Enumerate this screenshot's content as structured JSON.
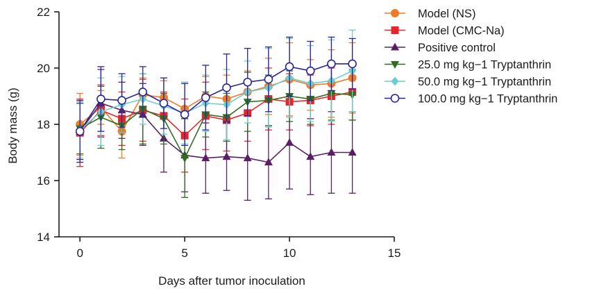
{
  "chart_data": {
    "type": "line",
    "xlabel": "Days after tumor inoculation",
    "ylabel": "Body mass (g)",
    "xlim": [
      -1,
      15
    ],
    "ylim": [
      14,
      22
    ],
    "xticks": [
      0,
      5,
      10,
      15
    ],
    "yticks": [
      14,
      16,
      18,
      20,
      22
    ],
    "x": [
      0,
      1,
      2,
      3,
      4,
      5,
      6,
      7,
      8,
      9,
      10,
      11,
      12,
      13
    ],
    "grid": false,
    "legend_position": "top-right",
    "series": [
      {
        "name": "Model (NS)",
        "color": "#f07a28",
        "marker": "circle-filled",
        "values": [
          18.0,
          18.6,
          17.75,
          19.05,
          18.95,
          18.55,
          19.0,
          18.9,
          19.15,
          19.35,
          19.6,
          19.4,
          19.45,
          19.65
        ],
        "errors": [
          1.1,
          0.6,
          0.95,
          0.6,
          0.6,
          0.95,
          0.7,
          0.85,
          0.75,
          1.0,
          1.3,
          0.9,
          1.2,
          1.25
        ]
      },
      {
        "name": "Model (CMC-Na)",
        "color": "#e8262a",
        "marker": "square-filled",
        "values": [
          17.7,
          18.5,
          18.2,
          18.5,
          18.3,
          17.6,
          18.3,
          18.15,
          18.4,
          18.9,
          18.8,
          18.85,
          19.0,
          19.15
        ],
        "errors": [
          1.2,
          0.9,
          0.95,
          1.1,
          0.85,
          1.3,
          1.2,
          1.1,
          1.0,
          1.1,
          1.0,
          0.9,
          1.0,
          1.0
        ]
      },
      {
        "name": "Positive control",
        "color": "#5b1e66",
        "marker": "triangle-up-filled",
        "values": [
          17.75,
          18.75,
          18.5,
          18.35,
          17.5,
          16.9,
          16.8,
          16.85,
          16.8,
          16.65,
          17.35,
          16.85,
          17.0,
          17.0
        ],
        "errors": [
          1.0,
          1.2,
          1.0,
          1.1,
          1.2,
          1.3,
          1.25,
          1.2,
          1.5,
          1.3,
          1.65,
          1.35,
          1.45,
          1.45
        ]
      },
      {
        "name": "25.0 mg kg−1 Tryptanthrin",
        "color": "#2c6e1e",
        "marker": "triangle-down-filled",
        "values": [
          17.85,
          18.25,
          17.95,
          18.55,
          18.2,
          16.8,
          18.35,
          18.25,
          18.8,
          18.85,
          19.0,
          18.9,
          19.1,
          19.05
        ],
        "errors": [
          0.9,
          1.1,
          0.85,
          1.25,
          0.9,
          1.4,
          0.8,
          0.85,
          1.05,
          0.9,
          0.9,
          0.9,
          0.95,
          0.9
        ]
      },
      {
        "name": "50.0 mg kg−1 Tryptanthrin",
        "color": "#6cccd0",
        "marker": "diamond-filled",
        "values": [
          17.8,
          18.45,
          18.7,
          18.9,
          18.65,
          18.4,
          18.75,
          18.7,
          19.15,
          19.3,
          19.65,
          19.45,
          19.55,
          19.9
        ],
        "errors": [
          1.0,
          1.2,
          1.0,
          0.9,
          1.0,
          1.1,
          1.0,
          1.25,
          1.1,
          1.4,
          1.4,
          1.35,
          1.45,
          1.45
        ]
      },
      {
        "name": "100.0 mg kg−1 Tryptanthrin",
        "color": "#26239a",
        "marker": "circle-open",
        "values": [
          17.75,
          18.9,
          18.85,
          19.15,
          18.75,
          18.35,
          18.95,
          19.3,
          19.5,
          19.6,
          20.05,
          19.9,
          20.15,
          20.15
        ],
        "errors": [
          1.1,
          1.15,
          0.95,
          0.9,
          0.9,
          1.1,
          1.15,
          1.2,
          1.2,
          1.15,
          1.05,
          1.05,
          0.95,
          0.9
        ]
      }
    ]
  }
}
